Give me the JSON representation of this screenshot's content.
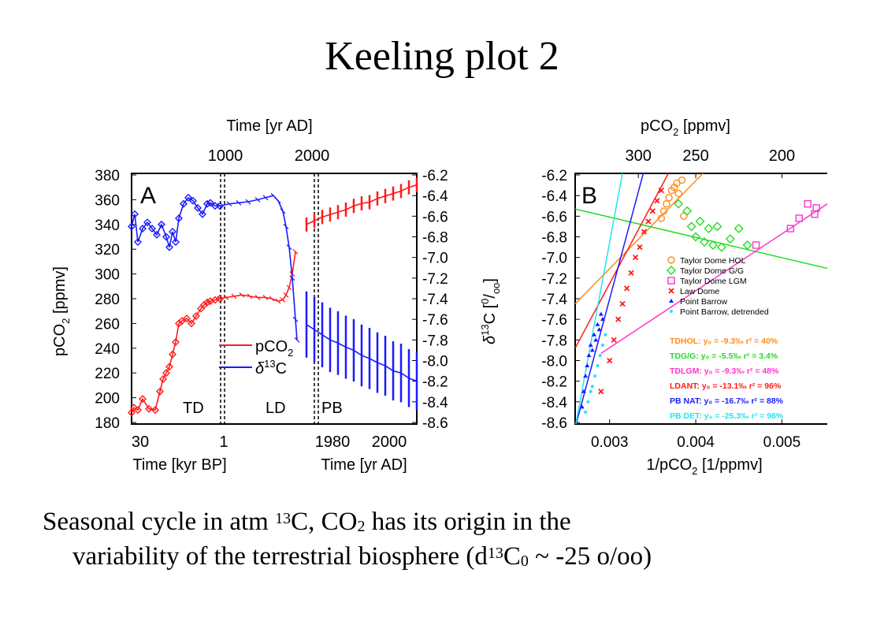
{
  "slide": {
    "title": "Keeling plot 2",
    "caption": {
      "p1": "Seasonal cycle in atm ",
      "sup1": "13",
      "p2": "C, CO",
      "sub1": "2",
      "p3": " has its origin in the",
      "p4": "variability of the terrestrial biosphere (d",
      "sup2": "13",
      "p5": "C",
      "sub2": "0",
      "p6": " ~ -25 o/oo)"
    }
  },
  "colors": {
    "red": "#ff1a1a",
    "blue": "#1a1aff",
    "orange": "#ff8c1a",
    "green": "#22dd22",
    "magenta": "#ff33cc",
    "cyan": "#22e5ee"
  },
  "chart_data": [
    {
      "type": "line",
      "panel_label": "A",
      "top_axis_title": "Time [yr AD]",
      "top_ticks": [
        "1000",
        "2000"
      ],
      "left_axis_title_parts": [
        "pCO",
        "2",
        " [ppmv]"
      ],
      "left_ylim": [
        180,
        380
      ],
      "left_ticks": [
        "380",
        "360",
        "340",
        "320",
        "300",
        "280",
        "260",
        "240",
        "220",
        "200",
        "180"
      ],
      "right_ylim": [
        -8.6,
        -6.2
      ],
      "right_ticks": [
        "-6.2",
        "-6.4",
        "-6.6",
        "-6.8",
        "-7.0",
        "-7.2",
        "-7.4",
        "-7.6",
        "-7.8",
        "-8.0",
        "-8.2",
        "-8.4",
        "-8.6"
      ],
      "bottom_left_ticks": [
        "30",
        "1"
      ],
      "bottom_left_title": "Time [kyr BP]",
      "bottom_right_ticks": [
        "1980",
        "2000"
      ],
      "bottom_right_title": "Time [yr AD]",
      "segments": [
        "TD",
        "LD",
        "PB"
      ],
      "legend": [
        {
          "label_parts": [
            "pCO",
            "2",
            ""
          ],
          "color": "red"
        },
        {
          "label_parts": [
            "δ",
            "13",
            "C"
          ],
          "color": "blue"
        }
      ],
      "series": [
        {
          "name": "pCO2 TD",
          "color": "red",
          "x": [
            0,
            3,
            8,
            14,
            22,
            30,
            36,
            40,
            44,
            48,
            52,
            56,
            60,
            64,
            70,
            76,
            82,
            88,
            92,
            96,
            100,
            106,
            112
          ],
          "y": [
            188,
            192,
            190,
            199,
            191,
            190,
            205,
            215,
            220,
            225,
            235,
            245,
            260,
            262,
            264,
            260,
            266,
            272,
            275,
            277,
            278,
            279,
            280
          ]
        },
        {
          "name": "pCO2 LD",
          "color": "red",
          "x": [
            112,
            120,
            130,
            140,
            150,
            160,
            170,
            178,
            186,
            192,
            196,
            200,
            204,
            208
          ],
          "y": [
            280,
            281,
            282,
            283,
            282,
            281,
            281,
            280,
            278,
            279,
            283,
            289,
            300,
            318
          ]
        },
        {
          "name": "pCO2 PB",
          "color": "red",
          "x": [
            222,
            232,
            242,
            252,
            262,
            272,
            282,
            292,
            302,
            312,
            322,
            332,
            342,
            352,
            362
          ],
          "y": [
            340,
            343,
            346,
            348,
            350,
            352,
            355,
            357,
            358,
            361,
            363,
            365,
            367,
            370,
            372
          ]
        },
        {
          "name": "delta13C TD",
          "color": "blue",
          "x": [
            0,
            4,
            8,
            14,
            20,
            26,
            32,
            38,
            44,
            48,
            52,
            56,
            60,
            66,
            72,
            78,
            84,
            90,
            96,
            100,
            106,
            112
          ],
          "y": [
            -6.7,
            -6.58,
            -6.85,
            -6.72,
            -6.66,
            -6.72,
            -6.78,
            -6.68,
            -6.8,
            -6.9,
            -6.75,
            -6.85,
            -6.62,
            -6.48,
            -6.42,
            -6.45,
            -6.52,
            -6.58,
            -6.48,
            -6.47,
            -6.5,
            -6.5
          ]
        },
        {
          "name": "delta13C LD",
          "color": "blue",
          "x": [
            112,
            124,
            136,
            148,
            160,
            170,
            180,
            186,
            192,
            196,
            200,
            204,
            208,
            210
          ],
          "y": [
            -6.5,
            -6.48,
            -6.47,
            -6.46,
            -6.44,
            -6.42,
            -6.4,
            -6.45,
            -6.55,
            -6.7,
            -6.9,
            -7.2,
            -7.6,
            -7.8
          ]
        },
        {
          "name": "delta13C PB",
          "color": "blue",
          "x": [
            222,
            232,
            242,
            252,
            262,
            272,
            282,
            292,
            302,
            312,
            322,
            332,
            342,
            352,
            362
          ],
          "y": [
            -7.65,
            -7.7,
            -7.75,
            -7.8,
            -7.83,
            -7.87,
            -7.9,
            -7.95,
            -7.98,
            -8.02,
            -8.05,
            -8.1,
            -8.12,
            -8.17,
            -8.2
          ]
        }
      ]
    },
    {
      "type": "scatter",
      "panel_label": "B",
      "top_axis_title_parts": [
        "pCO",
        "2",
        " [ppmv]"
      ],
      "top_ticks": [
        "300",
        "250",
        "200"
      ],
      "left_axis_title_parts": [
        "δ",
        "13",
        "C [",
        "0",
        "/",
        "oo",
        "]"
      ],
      "ylim": [
        -8.6,
        -6.2
      ],
      "y_ticks": [
        "-6.2",
        "-6.4",
        "-6.6",
        "-6.8",
        "-7.0",
        "-7.2",
        "-7.4",
        "-7.6",
        "-7.8",
        "-8.0",
        "-8.2",
        "-8.4",
        "-8.6"
      ],
      "xlim": [
        0.0026,
        0.0056
      ],
      "x_ticks": [
        "0.003",
        "0.004",
        "0.005"
      ],
      "x_axis_title_parts": [
        "1/pCO",
        "2",
        " [1/ppmv]"
      ],
      "legend": [
        {
          "label": "Taylor Dome HOL",
          "color": "orange",
          "marker": "circle"
        },
        {
          "label": "Taylor Dome G/G",
          "color": "green",
          "marker": "diamond"
        },
        {
          "label": "Taylor Dome LGM",
          "color": "magenta",
          "marker": "square"
        },
        {
          "label": "Law Dome",
          "color": "red",
          "marker": "x"
        },
        {
          "label": "Point Barrow",
          "color": "blue",
          "marker": "triangle"
        },
        {
          "label": "Point Barrow, detrended",
          "color": "cyan",
          "marker": "dot"
        }
      ],
      "fit_labels": [
        {
          "label": "TDHOL: y₀ = -9.3‰  r² = 40%",
          "color": "orange"
        },
        {
          "label": "TDG/G: y₀ = -5.5‰  r² = 3.4%",
          "color": "green"
        },
        {
          "label": "TDLGM: y₀ = -9.3‰  r² = 48%",
          "color": "magenta"
        },
        {
          "label": "LDANT: y₀ = -13.1‰  r² = 96%",
          "color": "red"
        },
        {
          "label": "PB NAT: y₀ = -16.7‰  r² = 88%",
          "color": "blue"
        },
        {
          "label": "PB DET: y₀ = -25.3‰  r² = 96%",
          "color": "cyan"
        }
      ],
      "fit_lines": [
        {
          "color": "orange",
          "x": [
            0.0026,
            0.0043
          ],
          "y": [
            -7.45,
            -6.0
          ]
        },
        {
          "color": "green",
          "x": [
            0.0026,
            0.0056
          ],
          "y": [
            -6.53,
            -7.12
          ]
        },
        {
          "color": "magenta",
          "x": [
            0.0029,
            0.0056
          ],
          "y": [
            -7.93,
            -6.44
          ]
        },
        {
          "color": "red",
          "x": [
            0.0026,
            0.0038
          ],
          "y": [
            -7.88,
            -6.0
          ]
        },
        {
          "color": "blue",
          "x": [
            0.0026,
            0.00345
          ],
          "y": [
            -8.65,
            -6.0
          ]
        },
        {
          "color": "cyan",
          "x": [
            0.0026,
            0.00319
          ],
          "y": [
            -8.65,
            -6.0
          ]
        }
      ],
      "series": [
        {
          "name": "Taylor Dome HOL",
          "color": "orange",
          "marker": "circle",
          "x": [
            0.0036,
            0.00363,
            0.00366,
            0.00369,
            0.00372,
            0.00375,
            0.00378,
            0.0038,
            0.00384,
            0.00386
          ],
          "y": [
            -6.62,
            -6.55,
            -6.48,
            -6.42,
            -6.35,
            -6.32,
            -6.28,
            -6.38,
            -6.25,
            -6.6
          ]
        },
        {
          "name": "Taylor Dome G/G",
          "color": "green",
          "marker": "diamond",
          "x": [
            0.0038,
            0.0039,
            0.00395,
            0.004,
            0.00405,
            0.0041,
            0.00415,
            0.0042,
            0.00425,
            0.0043,
            0.0044,
            0.0045,
            0.0046
          ],
          "y": [
            -6.48,
            -6.55,
            -6.7,
            -6.8,
            -6.65,
            -6.85,
            -6.72,
            -6.88,
            -6.7,
            -6.9,
            -6.82,
            -6.72,
            -6.88
          ]
        },
        {
          "name": "Taylor Dome LGM",
          "color": "magenta",
          "marker": "square",
          "x": [
            0.0047,
            0.0051,
            0.0052,
            0.0053,
            0.00538,
            0.0054
          ],
          "y": [
            -6.88,
            -6.72,
            -6.62,
            -6.48,
            -6.58,
            -6.52
          ]
        },
        {
          "name": "Law Dome",
          "color": "red",
          "marker": "x",
          "x": [
            0.0029,
            0.003,
            0.00305,
            0.0031,
            0.00315,
            0.0032,
            0.00325,
            0.0033,
            0.00335,
            0.0034,
            0.00345,
            0.0035,
            0.00355,
            0.0036
          ],
          "y": [
            -8.3,
            -8.0,
            -7.8,
            -7.6,
            -7.45,
            -7.3,
            -7.15,
            -7.0,
            -6.9,
            -6.75,
            -6.65,
            -6.55,
            -6.45,
            -6.35
          ]
        },
        {
          "name": "Point Barrow",
          "color": "blue",
          "marker": "triangle",
          "x": [
            0.00268,
            0.0027,
            0.00272,
            0.00274,
            0.00276,
            0.00278,
            0.0028,
            0.00282,
            0.00284,
            0.00286,
            0.00288,
            0.0029,
            0.00292
          ],
          "y": [
            -8.45,
            -8.3,
            -8.15,
            -8.05,
            -7.95,
            -7.85,
            -7.9,
            -7.75,
            -7.8,
            -7.65,
            -7.7,
            -7.55,
            -7.6
          ]
        },
        {
          "name": "Point Barrow, detrended",
          "color": "cyan",
          "marker": "dot",
          "x": [
            0.00272,
            0.00275,
            0.00278,
            0.0028,
            0.00283,
            0.00286,
            0.00289,
            0.00292,
            0.00295
          ],
          "y": [
            -8.5,
            -8.4,
            -8.3,
            -8.25,
            -8.15,
            -8.05,
            -7.95,
            -7.85,
            -7.75
          ]
        }
      ]
    }
  ]
}
